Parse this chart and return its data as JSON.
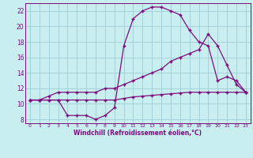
{
  "xlabel": "Windchill (Refroidissement éolien,°C)",
  "bg_color": "#c8eef0",
  "line_color": "#7b0e7b",
  "grid_color": "#9ecdd4",
  "xlim": [
    -0.5,
    23.5
  ],
  "ylim": [
    7.5,
    23.0
  ],
  "xticks": [
    0,
    1,
    2,
    3,
    4,
    5,
    6,
    7,
    8,
    9,
    10,
    11,
    12,
    13,
    14,
    15,
    16,
    17,
    18,
    19,
    20,
    21,
    22,
    23
  ],
  "yticks": [
    8,
    10,
    12,
    14,
    16,
    18,
    20,
    22
  ],
  "line1_x": [
    0,
    1,
    2,
    3,
    4,
    5,
    6,
    7,
    8,
    9,
    10,
    11,
    12,
    13,
    14,
    15,
    16,
    17,
    18,
    19,
    20,
    21,
    22,
    23
  ],
  "line1_y": [
    10.5,
    10.5,
    10.5,
    10.5,
    10.5,
    10.5,
    10.5,
    10.5,
    10.5,
    10.5,
    10.7,
    10.9,
    11.0,
    11.1,
    11.2,
    11.3,
    11.4,
    11.5,
    11.5,
    11.5,
    11.5,
    11.5,
    11.5,
    11.5
  ],
  "line2_x": [
    0,
    1,
    2,
    3,
    4,
    5,
    6,
    7,
    8,
    9,
    10,
    11,
    12,
    13,
    14,
    15,
    16,
    17,
    18,
    19,
    20,
    21,
    22,
    23
  ],
  "line2_y": [
    10.5,
    10.5,
    10.5,
    10.5,
    8.5,
    8.5,
    8.5,
    8.0,
    8.5,
    9.5,
    17.5,
    21.0,
    22.0,
    22.5,
    22.5,
    22.0,
    21.5,
    19.5,
    18.0,
    17.5,
    13.0,
    13.5,
    13.0,
    11.5
  ],
  "line3_x": [
    0,
    1,
    2,
    3,
    4,
    5,
    6,
    7,
    8,
    9,
    10,
    11,
    12,
    13,
    14,
    15,
    16,
    17,
    18,
    19,
    20,
    21,
    22,
    23
  ],
  "line3_y": [
    10.5,
    10.5,
    11.0,
    11.5,
    11.5,
    11.5,
    11.5,
    11.5,
    12.0,
    12.0,
    12.5,
    13.0,
    13.5,
    14.0,
    14.5,
    15.5,
    16.0,
    16.5,
    17.0,
    19.0,
    17.5,
    15.0,
    12.5,
    11.5
  ]
}
